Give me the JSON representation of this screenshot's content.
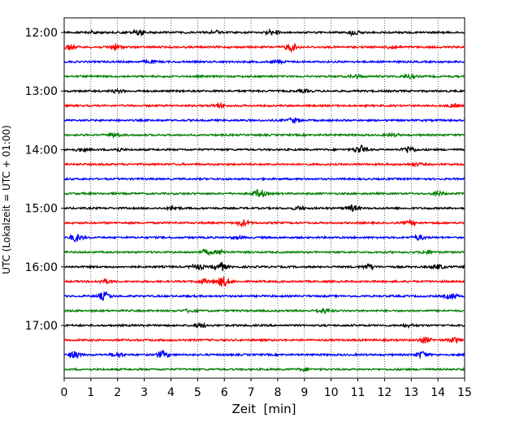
{
  "chart_data": {
    "type": "line",
    "title": "",
    "xlabel": "Zeit  [min]",
    "ylabel": "UTC (Lokalzeit = UTC + 01:00)",
    "xlim": [
      0,
      15
    ],
    "x_ticks": [
      "0",
      "1",
      "2",
      "3",
      "4",
      "5",
      "6",
      "7",
      "8",
      "9",
      "10",
      "11",
      "12",
      "13",
      "14",
      "15"
    ],
    "y_ticks": [
      "12:00",
      "13:00",
      "14:00",
      "15:00",
      "16:00",
      "17:00"
    ],
    "grid": "vertical dotted",
    "trace_colors": [
      "#000000",
      "#ff0000",
      "#0000ff",
      "#008000"
    ],
    "traces": [
      {
        "start": "12:00",
        "color": "#000000",
        "events": [
          [
            1.1,
            0.9
          ],
          [
            2.8,
            1.6
          ],
          [
            5.7,
            1.1
          ],
          [
            7.8,
            2.0
          ],
          [
            10.8,
            1.4
          ]
        ]
      },
      {
        "start": "12:15",
        "color": "#ff0000",
        "events": [
          [
            0.2,
            1.5
          ],
          [
            1.9,
            2.0
          ],
          [
            8.5,
            2.3
          ],
          [
            12.3,
            1.0
          ]
        ]
      },
      {
        "start": "12:30",
        "color": "#0000ff",
        "events": [
          [
            3.2,
            0.8
          ],
          [
            8.0,
            0.9
          ]
        ]
      },
      {
        "start": "12:45",
        "color": "#008000",
        "events": [
          [
            10.9,
            0.9
          ],
          [
            12.9,
            1.1
          ]
        ]
      },
      {
        "start": "13:00",
        "color": "#000000",
        "events": [
          [
            2.0,
            0.8
          ],
          [
            9.0,
            0.8
          ]
        ]
      },
      {
        "start": "13:15",
        "color": "#ff0000",
        "events": [
          [
            5.8,
            1.2
          ],
          [
            14.6,
            0.9
          ]
        ]
      },
      {
        "start": "13:30",
        "color": "#0000ff",
        "events": [
          [
            8.6,
            1.6
          ]
        ]
      },
      {
        "start": "13:45",
        "color": "#008000",
        "events": [
          [
            1.9,
            1.0
          ],
          [
            12.3,
            0.8
          ]
        ]
      },
      {
        "start": "14:00",
        "color": "#000000",
        "events": [
          [
            0.6,
            0.8
          ],
          [
            2.0,
            0.9
          ],
          [
            11.1,
            2.6
          ],
          [
            12.9,
            2.2
          ]
        ]
      },
      {
        "start": "14:15",
        "color": "#ff0000",
        "events": [
          [
            13.2,
            0.8
          ]
        ]
      },
      {
        "start": "14:30",
        "color": "#0000ff",
        "events": []
      },
      {
        "start": "14:45",
        "color": "#008000",
        "events": [
          [
            7.3,
            2.5
          ],
          [
            14.0,
            1.1
          ]
        ]
      },
      {
        "start": "15:00",
        "color": "#000000",
        "events": [
          [
            4.1,
            0.9
          ],
          [
            8.8,
            0.9
          ],
          [
            10.8,
            1.8
          ]
        ]
      },
      {
        "start": "15:15",
        "color": "#ff0000",
        "events": [
          [
            6.7,
            1.8
          ],
          [
            13.0,
            1.1
          ]
        ]
      },
      {
        "start": "15:30",
        "color": "#0000ff",
        "events": [
          [
            0.45,
            2.4
          ],
          [
            6.5,
            0.9
          ],
          [
            13.3,
            1.4
          ]
        ]
      },
      {
        "start": "15:45",
        "color": "#008000",
        "events": [
          [
            5.3,
            1.5
          ],
          [
            5.85,
            1.2
          ],
          [
            13.6,
            1.0
          ]
        ]
      },
      {
        "start": "16:00",
        "color": "#000000",
        "events": [
          [
            5.0,
            1.6
          ],
          [
            5.85,
            2.8
          ],
          [
            11.4,
            1.4
          ],
          [
            14.0,
            1.4
          ]
        ]
      },
      {
        "start": "16:15",
        "color": "#ff0000",
        "events": [
          [
            1.5,
            1.2
          ],
          [
            5.2,
            1.3
          ],
          [
            5.95,
            3.2
          ]
        ]
      },
      {
        "start": "16:30",
        "color": "#0000ff",
        "events": [
          [
            1.5,
            2.5
          ],
          [
            14.5,
            1.6
          ]
        ]
      },
      {
        "start": "16:45",
        "color": "#008000",
        "events": [
          [
            4.7,
            0.9
          ],
          [
            9.7,
            1.4
          ]
        ]
      },
      {
        "start": "17:00",
        "color": "#000000",
        "events": [
          [
            5.1,
            1.2
          ],
          [
            12.9,
            0.8
          ]
        ]
      },
      {
        "start": "17:15",
        "color": "#ff0000",
        "events": [
          [
            13.5,
            1.9
          ],
          [
            14.6,
            1.6
          ]
        ]
      },
      {
        "start": "17:30",
        "color": "#0000ff",
        "events": [
          [
            0.4,
            2.0
          ],
          [
            2.0,
            1.3
          ],
          [
            3.7,
            2.2
          ],
          [
            13.4,
            1.9
          ]
        ]
      },
      {
        "start": "17:45",
        "color": "#008000",
        "events": [
          [
            9.0,
            0.8
          ]
        ]
      }
    ]
  }
}
